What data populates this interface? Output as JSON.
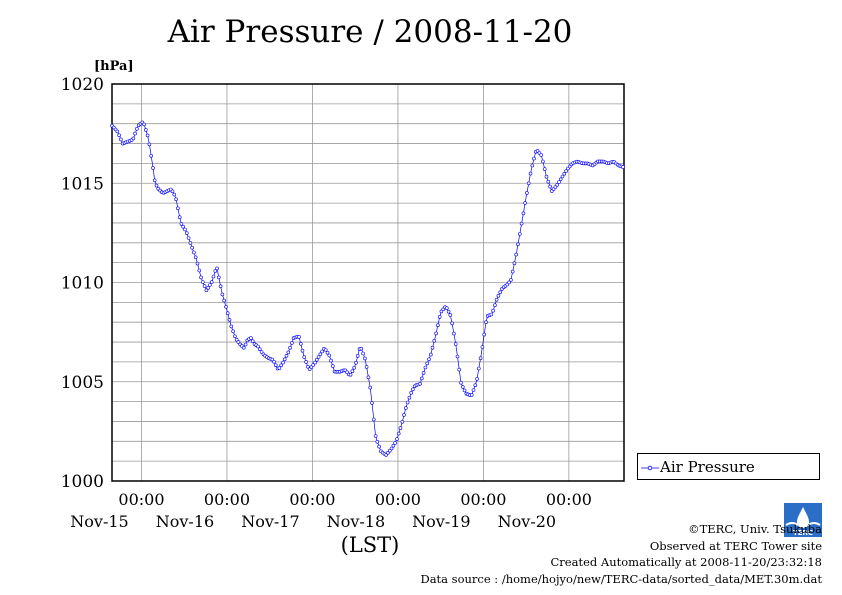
{
  "title": "Air Pressure / 2008-11-20",
  "chart_data": {
    "type": "line",
    "ylabel": "[hPa]",
    "xlabel": "(LST)",
    "ylim": [
      1000,
      1020
    ],
    "yticks": [
      "1020",
      "1015",
      "1010",
      "1005",
      "1000"
    ],
    "yticks_values": [
      1020,
      1015,
      1010,
      1005,
      1000
    ],
    "x_tick_time": "00:00",
    "x_tick_dates": [
      "Nov-15",
      "Nov-16",
      "Nov-17",
      "Nov-18",
      "Nov-19",
      "Nov-20"
    ],
    "x_unit": "days from 2008-11-14 00:00 LST",
    "xlim": [
      0.655,
      6.645
    ],
    "grid": true,
    "legend_position": "right",
    "series": [
      {
        "name": "Air Pressure",
        "color": "#0000ff",
        "x": [
          0.655,
          0.72,
          0.78,
          0.84,
          0.9,
          0.96,
          1.02,
          1.08,
          1.12,
          1.16,
          1.2,
          1.25,
          1.3,
          1.35,
          1.4,
          1.46,
          1.52,
          1.58,
          1.64,
          1.7,
          1.76,
          1.82,
          1.88,
          1.94,
          2.0,
          2.05,
          2.1,
          2.15,
          2.2,
          2.24,
          2.28,
          2.32,
          2.36,
          2.42,
          2.48,
          2.54,
          2.6,
          2.66,
          2.72,
          2.78,
          2.84,
          2.9,
          2.96,
          3.02,
          3.08,
          3.14,
          3.2,
          3.26,
          3.32,
          3.38,
          3.44,
          3.5,
          3.56,
          3.62,
          3.68,
          3.74,
          3.8,
          3.86,
          3.92,
          3.98,
          4.04,
          4.1,
          4.16,
          4.2,
          4.26,
          4.32,
          4.38,
          4.44,
          4.5,
          4.56,
          4.62,
          4.68,
          4.74,
          4.8,
          4.86,
          4.92,
          4.98,
          5.04,
          5.1,
          5.16,
          5.22,
          5.28,
          5.32,
          5.38,
          5.44,
          5.5,
          5.56,
          5.62,
          5.68,
          5.74,
          5.8,
          5.86,
          5.92,
          5.98,
          6.04,
          6.1,
          6.16,
          6.22,
          6.28,
          6.34,
          6.4,
          6.46,
          6.52,
          6.58,
          6.645
        ],
        "values": [
          1017.9,
          1017.6,
          1017.0,
          1017.1,
          1017.2,
          1017.9,
          1018.1,
          1017.3,
          1016.2,
          1015.0,
          1014.7,
          1014.5,
          1014.6,
          1014.7,
          1014.3,
          1013.0,
          1012.6,
          1011.9,
          1011.2,
          1010.2,
          1009.6,
          1010.0,
          1010.8,
          1009.5,
          1008.6,
          1007.8,
          1007.2,
          1006.9,
          1006.7,
          1007.1,
          1007.2,
          1006.9,
          1006.8,
          1006.4,
          1006.2,
          1006.1,
          1005.6,
          1006.0,
          1006.5,
          1007.2,
          1007.3,
          1006.3,
          1005.6,
          1005.9,
          1006.3,
          1006.7,
          1006.3,
          1005.5,
          1005.5,
          1005.6,
          1005.3,
          1005.8,
          1006.8,
          1006.1,
          1004.6,
          1002.2,
          1001.5,
          1001.3,
          1001.6,
          1002.0,
          1002.8,
          1003.8,
          1004.5,
          1004.8,
          1004.9,
          1005.7,
          1006.3,
          1007.3,
          1008.5,
          1008.8,
          1008.3,
          1006.8,
          1004.9,
          1004.4,
          1004.3,
          1005.0,
          1006.5,
          1008.3,
          1008.4,
          1009.2,
          1009.7,
          1009.9,
          1010.1,
          1011.3,
          1012.8,
          1014.3,
          1015.7,
          1016.7,
          1016.4,
          1015.3,
          1014.6,
          1014.9,
          1015.3,
          1015.7,
          1016.0,
          1016.1,
          1016.0,
          1016.0,
          1015.9,
          1016.1,
          1016.1,
          1016.0,
          1016.1,
          1015.9,
          1015.8
        ]
      }
    ]
  },
  "legend": {
    "label": "Air Pressure"
  },
  "credits": {
    "line1": "©TERC, Univ. Tsukuba",
    "line2": "Observed at TERC Tower site",
    "line3": "Created Automatically at 2008-11-20/23:32:18",
    "line4": "Data source : /home/hojyo/new/TERC-data/sorted_data/MET.30m.dat"
  },
  "logo_text": "TERC"
}
